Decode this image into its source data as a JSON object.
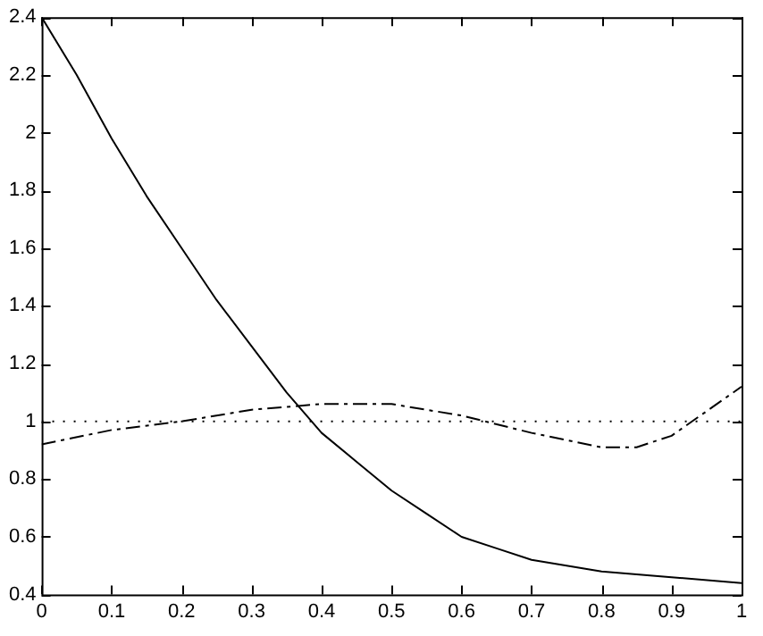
{
  "chart_data": {
    "type": "line",
    "x": [
      0,
      0.05,
      0.1,
      0.15,
      0.2,
      0.25,
      0.3,
      0.35,
      0.4,
      0.45,
      0.5,
      0.55,
      0.6,
      0.65,
      0.7,
      0.8,
      0.9,
      1
    ],
    "series": [
      {
        "color": "#000000",
        "line_style": "solid",
        "values": [
          2.4,
          2.2,
          1.98,
          1.78,
          1.6,
          1.42,
          1.26,
          1.1,
          0.96,
          0.86,
          0.76,
          0.68,
          0.6,
          0.56,
          0.52,
          0.48,
          0.46,
          0.44
        ]
      },
      {
        "color": "#000000",
        "line_style": "dashed",
        "x": [
          0,
          0.1,
          0.2,
          0.3,
          0.4,
          0.5,
          0.6,
          0.7,
          0.8,
          0.85,
          0.9,
          1
        ],
        "values": [
          0.92,
          0.97,
          1.0,
          1.04,
          1.06,
          1.06,
          1.02,
          0.96,
          0.91,
          0.91,
          0.95,
          1.12
        ]
      },
      {
        "color": "#000000",
        "line_style": "dotted",
        "x": [
          0,
          1
        ],
        "values": [
          1,
          1
        ]
      }
    ],
    "xlim": [
      0,
      1
    ],
    "xticks": [
      0,
      0.1,
      0.2,
      0.3,
      0.4,
      0.5,
      0.6,
      0.7,
      0.8,
      0.9,
      1
    ],
    "ylim": [
      0.4,
      2.4
    ],
    "yticks": [
      0.4,
      0.6,
      0.8,
      1,
      1.2,
      1.4,
      1.6,
      1.8,
      2,
      2.2,
      2.4
    ],
    "grid": false,
    "legend": false,
    "marker": "none"
  }
}
